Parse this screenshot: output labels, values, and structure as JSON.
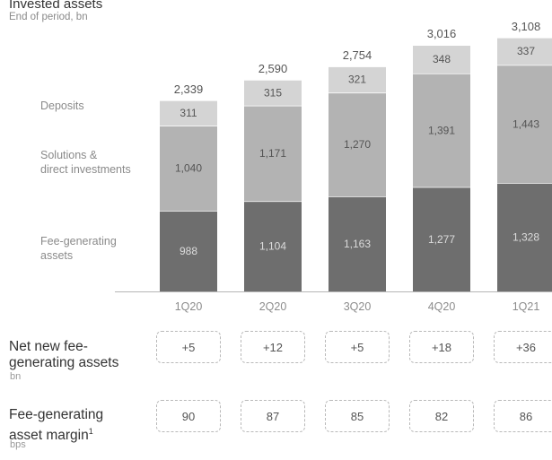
{
  "colors": {
    "fee_generating": "#6e6e6e",
    "solutions": "#b3b3b3",
    "deposits": "#d4d4d4",
    "label_dark_segment": "#dcdcdc",
    "label_light_segment": "#555555",
    "total_label": "#555555",
    "category_label": "#8c8c8c",
    "axis": "#b5b5b5"
  },
  "chart_data": {
    "type": "bar",
    "stacked": true,
    "title": "Invested assets",
    "subtitle": "End of period, bn",
    "categories": [
      "1Q20",
      "2Q20",
      "3Q20",
      "4Q20",
      "1Q21"
    ],
    "series": [
      {
        "name": "Fee-generating assets",
        "values": [
          988,
          1104,
          1163,
          1277,
          1328
        ]
      },
      {
        "name": "Solutions & direct investments",
        "values": [
          1040,
          1171,
          1270,
          1391,
          1443
        ]
      },
      {
        "name": "Deposits",
        "values": [
          311,
          315,
          321,
          348,
          337
        ]
      }
    ],
    "value_labels": [
      [
        "988",
        "1,104",
        "1,163",
        "1,277",
        "1,328"
      ],
      [
        "1,040",
        "1,171",
        "1,270",
        "1,391",
        "1,443"
      ],
      [
        "311",
        "315",
        "321",
        "348",
        "337"
      ]
    ],
    "totals": [
      "2,339",
      "2,590",
      "2,754",
      "3,016",
      "3,108"
    ],
    "ylim": [
      0,
      3150
    ],
    "legend": [
      "Deposits",
      "Solutions &",
      "direct investments",
      "Fee-generating",
      "assets"
    ],
    "grid": false
  },
  "metrics": [
    {
      "label_lines": [
        "Net new fee-",
        "generating assets"
      ],
      "unit": "bn",
      "footnote": "",
      "values": [
        "+5",
        "+12",
        "+5",
        "+18",
        "+36"
      ]
    },
    {
      "label_lines": [
        "Fee-generating",
        "asset margin"
      ],
      "unit": "bps",
      "footnote": "1",
      "values": [
        "90",
        "87",
        "85",
        "82",
        "86"
      ]
    }
  ]
}
